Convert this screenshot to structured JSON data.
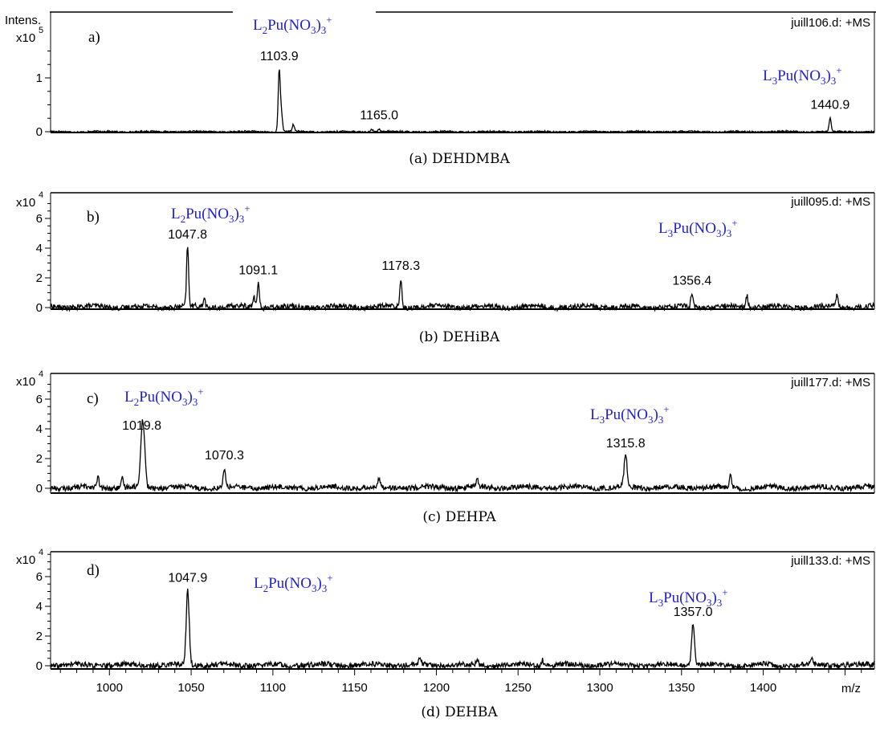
{
  "chart_data": [
    {
      "type": "line",
      "panel_label": "a)",
      "file_label": "juill106.d: +MS",
      "y_title": "Intens.",
      "y_exponent": "5",
      "y_ticks": [
        0,
        1
      ],
      "ylim": [
        0,
        1.7
      ],
      "xlim": [
        964,
        1468
      ],
      "caption": "(a) DEHDMBA",
      "peaks": [
        [
          1103.9,
          1.15
        ],
        [
          1105.3,
          0.32
        ],
        [
          1112.5,
          0.13
        ],
        [
          1160.6,
          0.05
        ],
        [
          1165.0,
          0.05
        ],
        [
          1440.9,
          0.25
        ]
      ],
      "peak_labels": [
        {
          "x": 1103.9,
          "text": "1103.9"
        },
        {
          "x": 1165.0,
          "text": "1165.0"
        },
        {
          "x": 1440.9,
          "text": "1440.9"
        }
      ],
      "species": [
        {
          "m": "2",
          "text": "L2Pu(NO3)3+"
        },
        {
          "m": "3",
          "text": "L3Pu(NO3)3+"
        }
      ]
    },
    {
      "type": "line",
      "panel_label": "b)",
      "file_label": "juill095.d: +MS",
      "y_exponent": "4",
      "y_ticks": [
        0,
        2,
        4,
        6
      ],
      "ylim": [
        0,
        7.2
      ],
      "xlim": [
        964,
        1468
      ],
      "caption": "(b) DEHiBA",
      "peaks": [
        [
          1047.8,
          4.0
        ],
        [
          1058,
          0.6
        ],
        [
          1088.5,
          0.7
        ],
        [
          1091.1,
          1.6
        ],
        [
          1178.3,
          1.9
        ],
        [
          1356.4,
          0.9
        ],
        [
          1390,
          0.8
        ],
        [
          1445,
          0.8
        ]
      ],
      "peak_labels": [
        {
          "x": 1047.8,
          "text": "1047.8"
        },
        {
          "x": 1091.1,
          "text": "1091.1"
        },
        {
          "x": 1178.3,
          "text": "1178.3"
        },
        {
          "x": 1356.4,
          "text": "1356.4"
        }
      ],
      "species": [
        {
          "m": "2",
          "text": "L2Pu(NO3)3+"
        },
        {
          "m": "3",
          "text": "L3Pu(NO3)3+"
        }
      ]
    },
    {
      "type": "line",
      "panel_label": "c)",
      "file_label": "juill177.d: +MS",
      "y_exponent": "4",
      "y_ticks": [
        0,
        2,
        4,
        6
      ],
      "ylim": [
        0,
        7.2
      ],
      "xlim": [
        964,
        1468
      ],
      "caption": "(c) DEHPA",
      "peaks": [
        [
          993,
          0.7
        ],
        [
          1008,
          0.6
        ],
        [
          1019.8,
          3.3
        ],
        [
          1021.2,
          2.6
        ],
        [
          1070.3,
          1.3
        ],
        [
          1165,
          0.5
        ],
        [
          1225,
          0.6
        ],
        [
          1315.8,
          2.1
        ],
        [
          1380,
          0.9
        ]
      ],
      "peak_labels": [
        {
          "x": 1019.8,
          "text": "1019.8"
        },
        {
          "x": 1070.3,
          "text": "1070.3"
        },
        {
          "x": 1315.8,
          "text": "1315.8"
        }
      ],
      "species": [
        {
          "m": "2",
          "text": "L2Pu(NO3)3+"
        },
        {
          "m": "3",
          "text": "L3Pu(NO3)3+"
        }
      ]
    },
    {
      "type": "line",
      "panel_label": "d)",
      "file_label": "juill133.d: +MS",
      "y_exponent": "4",
      "y_ticks": [
        0,
        2,
        4,
        6
      ],
      "ylim": [
        0,
        8.0
      ],
      "xlim": [
        964,
        1468
      ],
      "caption": "(d) DEHBA",
      "x_ticks": [
        1000,
        1050,
        1100,
        1150,
        1200,
        1250,
        1300,
        1350,
        1400
      ],
      "x_unit": "m/z",
      "peaks": [
        [
          1047.9,
          5.0
        ],
        [
          1357.0,
          2.7
        ],
        [
          1190,
          0.4
        ],
        [
          1225,
          0.4
        ],
        [
          1265,
          0.4
        ],
        [
          1430,
          0.4
        ]
      ],
      "peak_labels": [
        {
          "x": 1047.9,
          "text": "1047.9"
        },
        {
          "x": 1357.0,
          "text": "1357.0"
        }
      ],
      "species": [
        {
          "m": "2",
          "text": "L2Pu(NO3)3+"
        },
        {
          "m": "3",
          "text": "L3Pu(NO3)3+"
        }
      ]
    }
  ]
}
